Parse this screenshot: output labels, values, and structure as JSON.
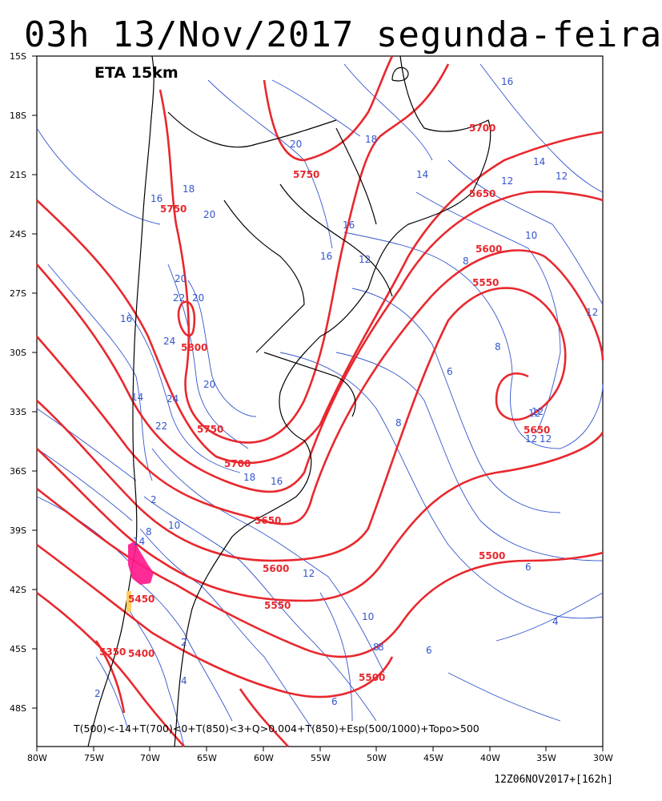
{
  "header": {
    "title": "03h 13/Nov/2017 segunda-feira",
    "model": "ETA 15km"
  },
  "footer": {
    "legend": "T(500)<-14+T(700)<0+T(850)<3+Q>0.004+T(850)+Esp(500/1000)+Topo>500",
    "run": "12Z06NOV2017+[162h]"
  },
  "axes": {
    "lat_labels": [
      "15S",
      "18S",
      "21S",
      "24S",
      "27S",
      "30S",
      "33S",
      "36S",
      "39S",
      "42S",
      "45S",
      "48S"
    ],
    "lon_labels": [
      "80W",
      "75W",
      "70W",
      "65W",
      "60W",
      "55W",
      "50W",
      "45W",
      "40W",
      "35W",
      "30W"
    ]
  },
  "colors": {
    "thickness": "#e8282e",
    "temperature": "#3355cc",
    "coast": "#000000",
    "snow": "#ff1a8c"
  },
  "thickness_labels": [
    "5750",
    "5750",
    "5800",
    "5700",
    "5650",
    "5750",
    "5700",
    "5650",
    "5600",
    "5550",
    "5600",
    "5550",
    "5450",
    "5400",
    "5350",
    "5500",
    "5500",
    "5650"
  ],
  "temperature_labels": [
    "16",
    "20",
    "18",
    "14",
    "12",
    "16",
    "18",
    "16",
    "20",
    "20",
    "22",
    "20",
    "16",
    "24",
    "24",
    "20",
    "14",
    "22",
    "12",
    "16",
    "18",
    "16",
    "12",
    "10",
    "8",
    "8",
    "12",
    "14",
    "12",
    "10",
    "8",
    "6",
    "8",
    "6",
    "2",
    "4",
    "6",
    "2",
    "12",
    "12",
    "12",
    "14",
    "10",
    "8",
    "8",
    "6",
    "4",
    "2",
    "12"
  ]
}
